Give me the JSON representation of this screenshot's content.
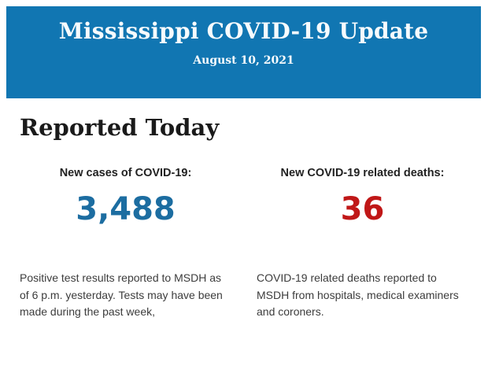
{
  "header": {
    "title": "Mississippi COVID-19 Update",
    "date": "August 10, 2021"
  },
  "section": {
    "title": "Reported Today"
  },
  "stats": {
    "cases": {
      "label": "New cases of COVID-19:",
      "value": "3,488",
      "description": "Positive test results reported to MSDH as of 6 p.m. yesterday. Tests may have been made during the past week,"
    },
    "deaths": {
      "label": "New COVID-19 related deaths:",
      "value": "36",
      "description": "COVID-19 related deaths reported to MSDH from hospitals, medical examiners and coroners."
    }
  },
  "colors": {
    "banner_background": "#1176b2",
    "banner_text": "#f7fbfd",
    "cases_value": "#1c6da1",
    "deaths_value": "#c01717",
    "heading_text": "#1a1a1a",
    "body_text": "#3c3c3c"
  }
}
